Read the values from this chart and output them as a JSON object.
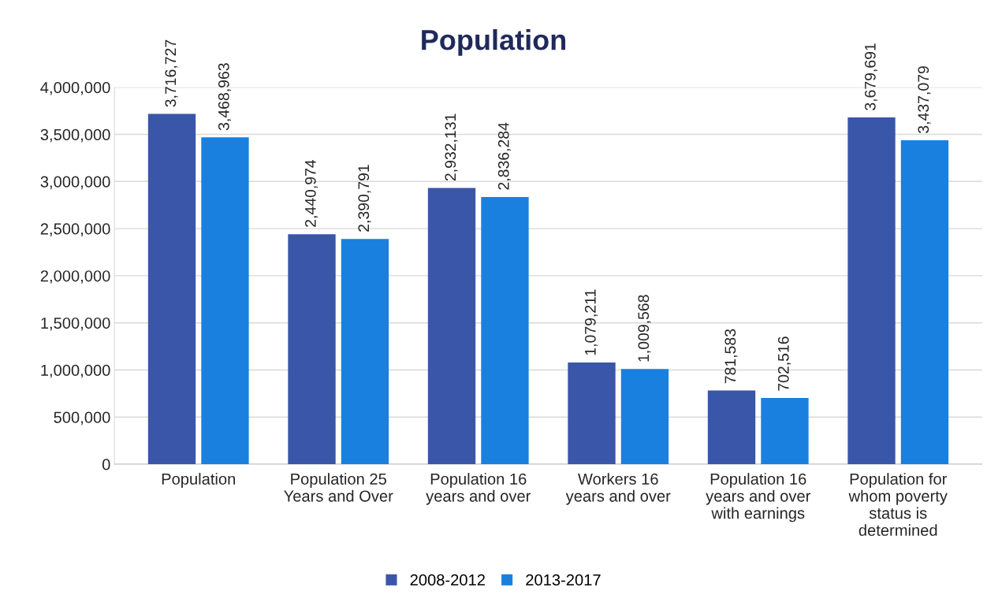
{
  "chart_data": {
    "type": "bar",
    "title": "Population",
    "categories": [
      "Population",
      "Population 25\nYears and Over",
      "Population 16\nyears and over",
      "Workers 16\nyears and over",
      "Population 16\nyears and over\nwith earnings",
      "Population for\nwhom poverty\nstatus is\ndetermined"
    ],
    "series": [
      {
        "name": "2008-2012",
        "color": "#3a56a8",
        "values": [
          3716727,
          2440974,
          2932131,
          1079211,
          781583,
          3679691
        ],
        "value_labels": [
          "3,716,727",
          "2,440,974",
          "2,932,131",
          "1,079,211",
          "781,583",
          "3,679,691"
        ]
      },
      {
        "name": "2013-2017",
        "color": "#1a80e0",
        "values": [
          3468963,
          2390791,
          2836284,
          1009568,
          702516,
          3437079
        ],
        "value_labels": [
          "3,468,963",
          "2,390,791",
          "2,836,284",
          "1,009,568",
          "702,516",
          "3,437,079"
        ]
      }
    ],
    "ylim": [
      0,
      4000000
    ],
    "yticks": [
      {
        "value": 0,
        "label": "0"
      },
      {
        "value": 500000,
        "label": "500,000"
      },
      {
        "value": 1000000,
        "label": "1,000,000"
      },
      {
        "value": 1500000,
        "label": "1,500,000"
      },
      {
        "value": 2000000,
        "label": "2,000,000"
      },
      {
        "value": 2500000,
        "label": "2,500,000"
      },
      {
        "value": 3000000,
        "label": "3,000,000"
      },
      {
        "value": 3500000,
        "label": "3,500,000"
      },
      {
        "value": 4000000,
        "label": "4,000,000"
      }
    ],
    "grid": "y",
    "legend": "bottom"
  }
}
